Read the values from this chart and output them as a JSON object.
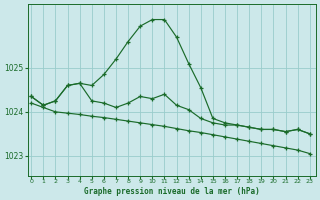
{
  "title": "Graphe pression niveau de la mer (hPa)",
  "bg_color": "#cce8ea",
  "grid_color": "#99cccc",
  "line_color": "#1a6b2a",
  "x_ticks": [
    0,
    1,
    2,
    3,
    4,
    5,
    6,
    7,
    8,
    9,
    10,
    11,
    12,
    13,
    14,
    15,
    16,
    17,
    18,
    19,
    20,
    21,
    22,
    23
  ],
  "y_ticks": [
    1023,
    1024,
    1025
  ],
  "ylim": [
    1022.55,
    1026.45
  ],
  "xlim": [
    -0.3,
    23.5
  ],
  "series1": [
    1024.35,
    1024.15,
    1024.25,
    1024.6,
    1024.65,
    1024.6,
    1024.85,
    1025.2,
    1025.6,
    1025.95,
    1026.1,
    1026.1,
    1025.7,
    1025.1,
    1024.55,
    1023.85,
    1023.75,
    1023.7,
    1023.65,
    1023.6,
    1023.6,
    1023.55,
    1023.6,
    1023.5
  ],
  "series2": [
    1024.35,
    1024.15,
    1024.25,
    1024.6,
    1024.65,
    1024.25,
    1024.2,
    1024.1,
    1024.2,
    1024.35,
    1024.3,
    1024.4,
    1024.15,
    1024.05,
    1023.85,
    1023.75,
    1023.7,
    1023.7,
    1023.65,
    1023.6,
    1023.6,
    1023.55,
    1023.6,
    1023.5
  ],
  "series3": [
    1024.2,
    1024.1,
    1024.0,
    1023.97,
    1023.94,
    1023.9,
    1023.87,
    1023.83,
    1023.79,
    1023.75,
    1023.71,
    1023.67,
    1023.62,
    1023.57,
    1023.53,
    1023.48,
    1023.43,
    1023.38,
    1023.33,
    1023.28,
    1023.23,
    1023.18,
    1023.13,
    1023.05
  ]
}
